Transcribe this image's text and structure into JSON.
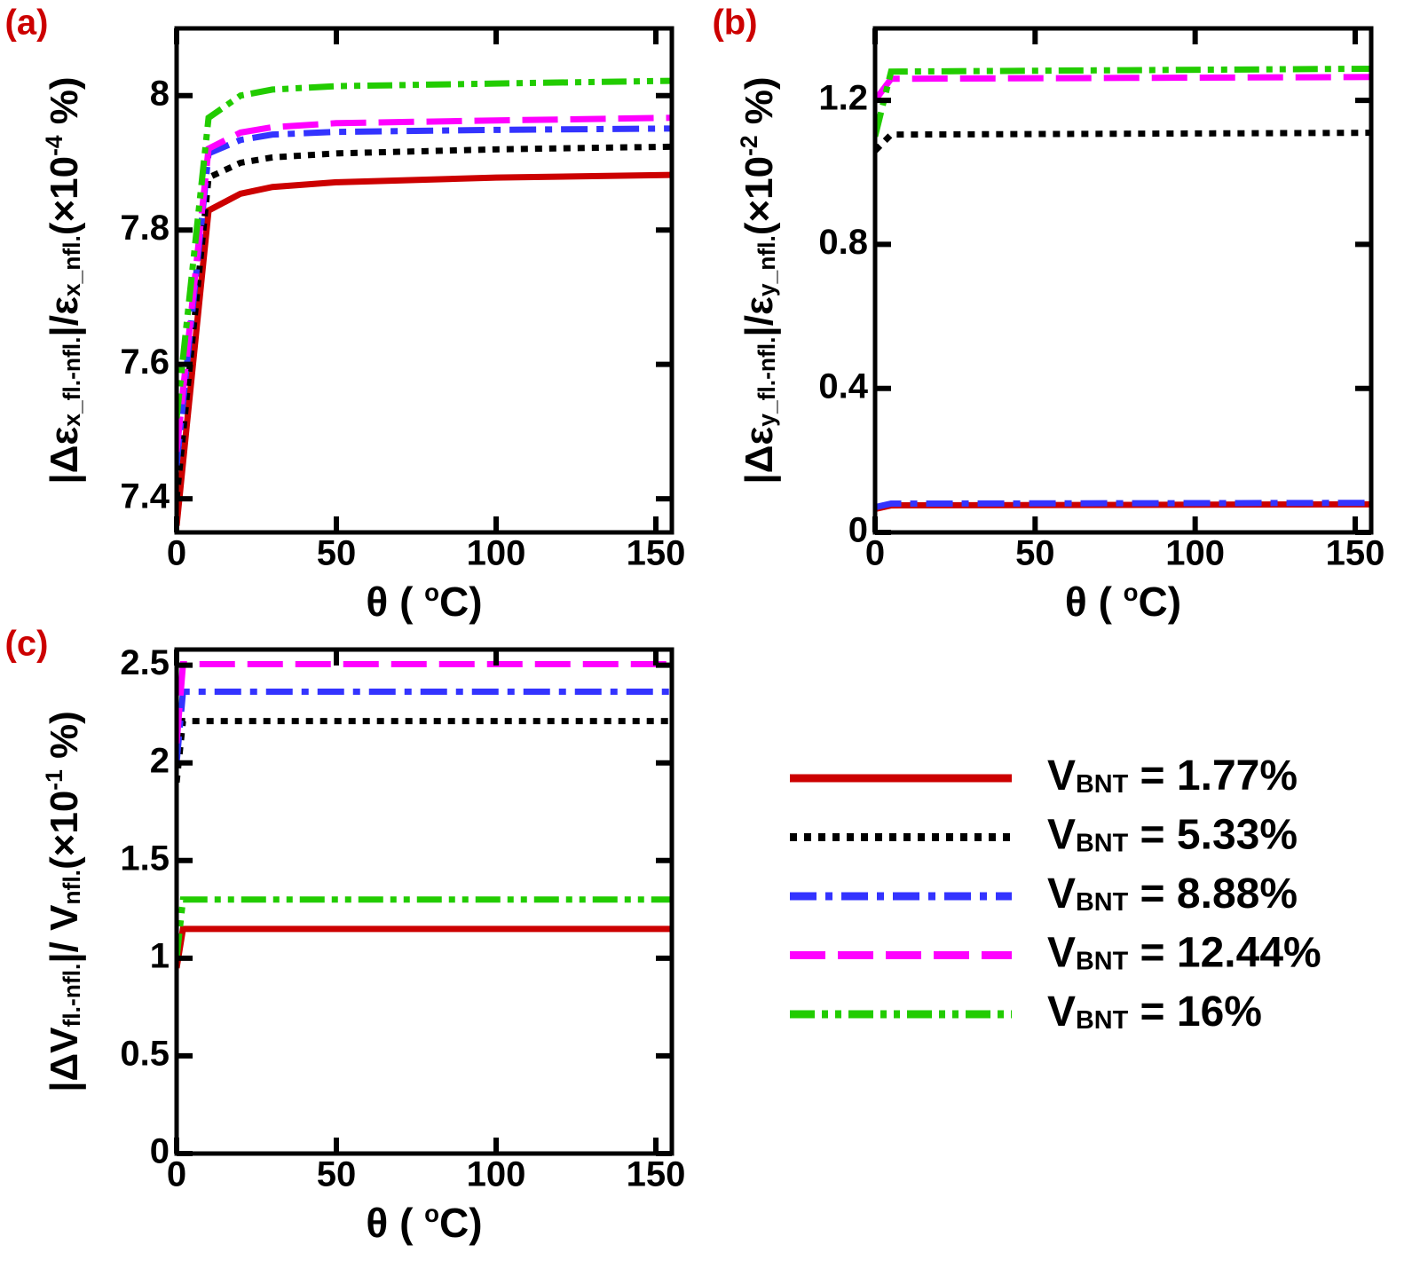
{
  "chart_data": [
    {
      "type": "line",
      "panel_label": "(a)",
      "x_label": [
        {
          "text": "θ ( "
        },
        {
          "text": "o",
          "shift": "super"
        },
        {
          "text": "C)"
        }
      ],
      "y_label": [
        {
          "text": "|Δε"
        },
        {
          "text": "x_fl.-nfl.",
          "shift": "sub"
        },
        {
          "text": "|/ε"
        },
        {
          "text": "x_nfl.",
          "shift": "sub"
        },
        {
          "text": "(×10"
        },
        {
          "text": "-4",
          "shift": "super"
        },
        {
          "text": " %)"
        }
      ],
      "x": [
        0,
        10,
        20,
        30,
        50,
        100,
        155
      ],
      "xlim": [
        0,
        155
      ],
      "xticks": [
        0,
        50,
        100,
        150
      ],
      "ylim": [
        7.35,
        8.1
      ],
      "yticks": [
        7.4,
        7.6,
        7.8,
        8
      ],
      "series": [
        {
          "color": "#cc0000",
          "style": "solid",
          "values": [
            7.36,
            7.829,
            7.854,
            7.864,
            7.871,
            7.878,
            7.882
          ]
        },
        {
          "color": "#000000",
          "style": "dotted",
          "values": [
            7.4,
            7.878,
            7.9,
            7.908,
            7.914,
            7.92,
            7.924
          ]
        },
        {
          "color": "#3333ff",
          "style": "dashdot",
          "values": [
            7.45,
            7.914,
            7.934,
            7.942,
            7.946,
            7.949,
            7.951
          ]
        },
        {
          "color": "#ff00ff",
          "style": "dashed",
          "values": [
            7.47,
            7.921,
            7.945,
            7.953,
            7.959,
            7.963,
            7.967
          ]
        },
        {
          "color": "#22cc00",
          "style": "dashdotdot",
          "values": [
            7.52,
            7.967,
            8.0,
            8.009,
            8.014,
            8.018,
            8.022
          ]
        }
      ]
    },
    {
      "type": "line",
      "panel_label": "(b)",
      "x_label": [
        {
          "text": "θ ( "
        },
        {
          "text": "o",
          "shift": "super"
        },
        {
          "text": "C)"
        }
      ],
      "y_label": [
        {
          "text": "|Δε"
        },
        {
          "text": "y_fl.-nfl.",
          "shift": "sub"
        },
        {
          "text": "|/ε"
        },
        {
          "text": "y_nfl.",
          "shift": "sub"
        },
        {
          "text": "(×10"
        },
        {
          "text": "-2",
          "shift": "super"
        },
        {
          "text": " %)"
        }
      ],
      "x": [
        0,
        5,
        155
      ],
      "xlim": [
        0,
        155
      ],
      "xticks": [
        0,
        50,
        100,
        150
      ],
      "ylim": [
        0,
        1.4
      ],
      "yticks": [
        0,
        0.4,
        0.8,
        1.2
      ],
      "series": [
        {
          "color": "#cc0000",
          "style": "solid",
          "values": [
            0.065,
            0.075,
            0.078
          ]
        },
        {
          "color": "#000000",
          "style": "dotted",
          "values": [
            1.06,
            1.105,
            1.11
          ]
        },
        {
          "color": "#3333ff",
          "style": "dashdot",
          "values": [
            0.07,
            0.08,
            0.082
          ]
        },
        {
          "color": "#ff00ff",
          "style": "dashed",
          "values": [
            1.2,
            1.26,
            1.265
          ]
        },
        {
          "color": "#22cc00",
          "style": "dashdotdot",
          "values": [
            1.1,
            1.28,
            1.288
          ]
        }
      ]
    },
    {
      "type": "line",
      "panel_label": "(c)",
      "x_label": [
        {
          "text": "θ ( "
        },
        {
          "text": "o",
          "shift": "super"
        },
        {
          "text": "C)"
        }
      ],
      "y_label": [
        {
          "text": "|ΔV"
        },
        {
          "text": "fl.-nfl.",
          "shift": "sub"
        },
        {
          "text": "|/ V"
        },
        {
          "text": "nfl.",
          "shift": "sub"
        },
        {
          "text": "(×10"
        },
        {
          "text": "-1",
          "shift": "super"
        },
        {
          "text": " %)"
        }
      ],
      "x": [
        0,
        2,
        155
      ],
      "xlim": [
        0,
        155
      ],
      "xticks": [
        0,
        50,
        100,
        150
      ],
      "ylim": [
        0,
        2.58
      ],
      "yticks": [
        0,
        0.5,
        1,
        1.5,
        2,
        2.5
      ],
      "series": [
        {
          "color": "#cc0000",
          "style": "solid",
          "values": [
            0.95,
            1.15,
            1.15
          ]
        },
        {
          "color": "#000000",
          "style": "dotted",
          "values": [
            1.9,
            2.214,
            2.214
          ]
        },
        {
          "color": "#3333ff",
          "style": "dashdot",
          "values": [
            2.0,
            2.364,
            2.364
          ]
        },
        {
          "color": "#ff00ff",
          "style": "dashed",
          "values": [
            2.1,
            2.505,
            2.505
          ]
        },
        {
          "color": "#22cc00",
          "style": "dashdotdot",
          "values": [
            1.0,
            1.3,
            1.3
          ]
        }
      ]
    }
  ],
  "legend": {
    "entries": [
      [
        {
          "text": "V"
        },
        {
          "text": "BNT",
          "shift": "sub"
        },
        {
          "text": " = 1.77%"
        }
      ],
      [
        {
          "text": "V"
        },
        {
          "text": "BNT",
          "shift": "sub"
        },
        {
          "text": " = 5.33%"
        }
      ],
      [
        {
          "text": "V"
        },
        {
          "text": "BNT",
          "shift": "sub"
        },
        {
          "text": " = 8.88%"
        }
      ],
      [
        {
          "text": "V"
        },
        {
          "text": "BNT",
          "shift": "sub"
        },
        {
          "text": " = 12.44%"
        }
      ],
      [
        {
          "text": "V"
        },
        {
          "text": "BNT",
          "shift": "sub"
        },
        {
          "text": " = 16%"
        }
      ]
    ]
  }
}
